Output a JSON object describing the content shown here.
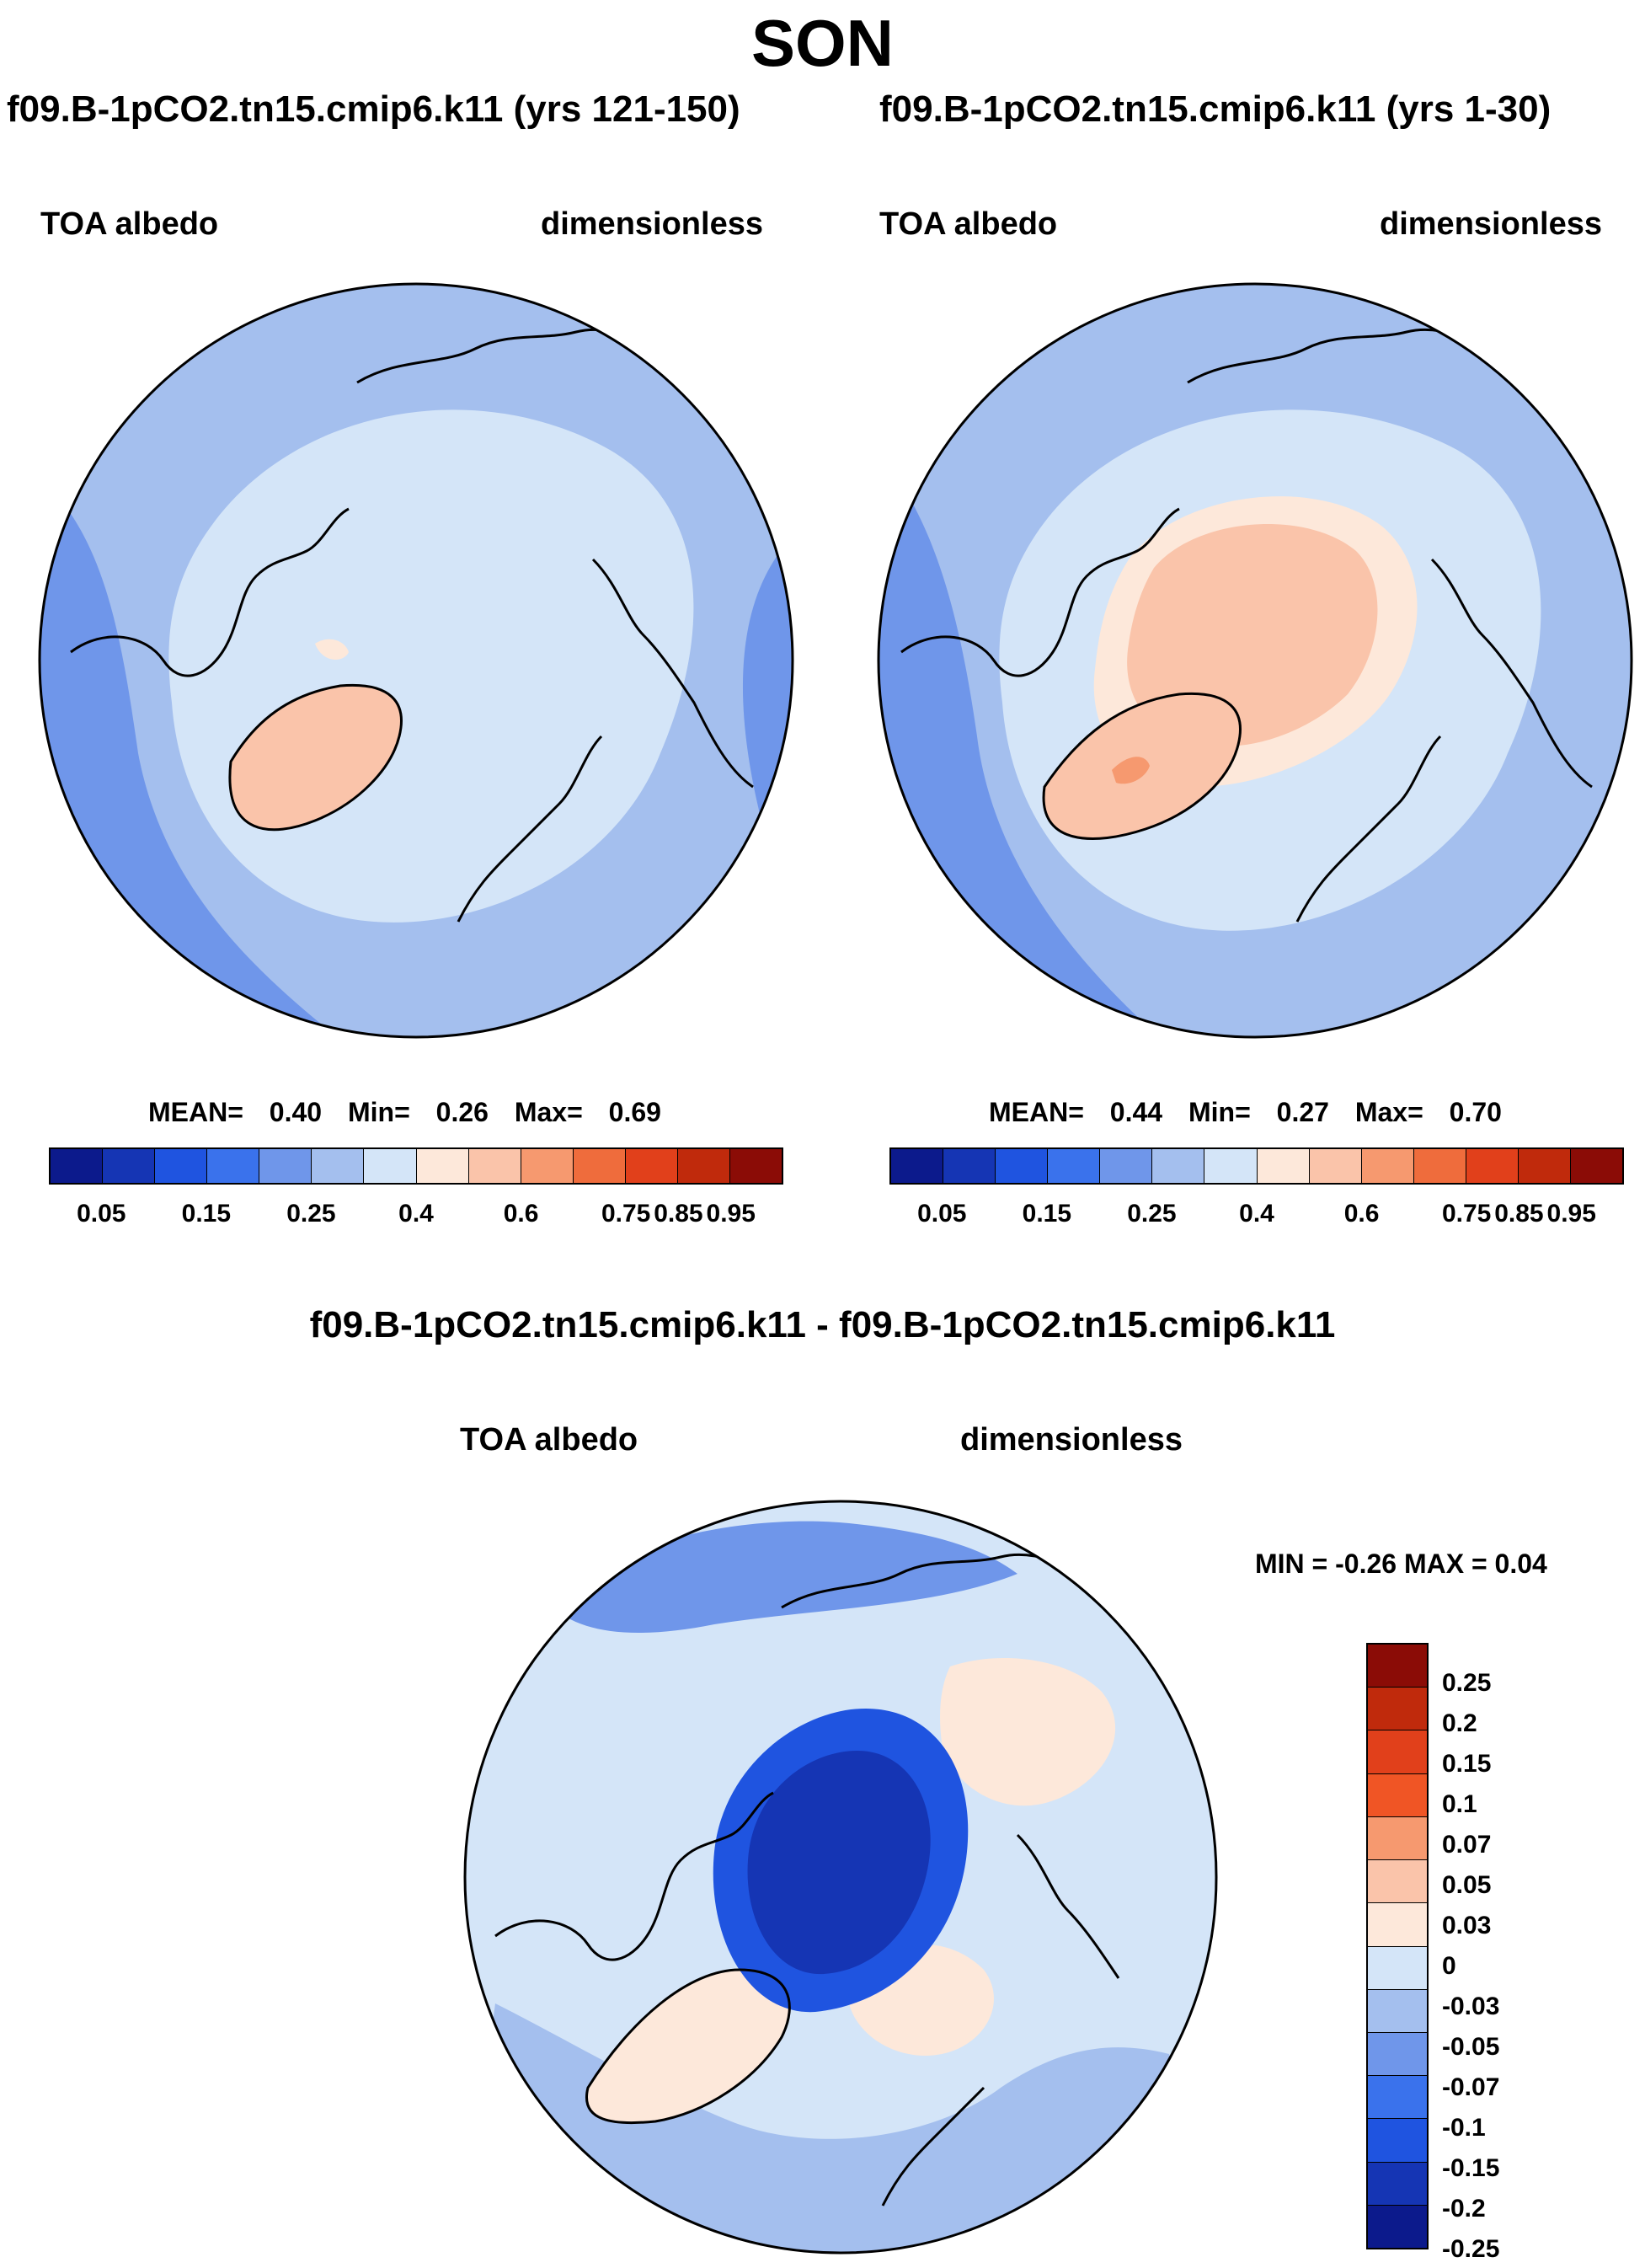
{
  "figure": {
    "season": "SON",
    "left_case_title": "f09.B-1pCO2.tn15.cmip6.k11 (yrs 121-150)",
    "right_case_title": "f09.B-1pCO2.tn15.cmip6.k11 (yrs 1-30)",
    "diff_title": "f09.B-1pCO2.tn15.cmip6.k11 - f09.B-1pCO2.tn15.cmip6.k11"
  },
  "panels": [
    {
      "variable": "TOA albedo",
      "units": "dimensionless",
      "mean_label": "MEAN=",
      "mean": "0.40",
      "min_label": "Min=",
      "min": "0.26",
      "max_label": "Max=",
      "max": "0.69"
    },
    {
      "variable": "TOA albedo",
      "units": "dimensionless",
      "mean_label": "MEAN=",
      "mean": "0.44",
      "min_label": "Min=",
      "min": "0.27",
      "max_label": "Max=",
      "max": "0.70"
    },
    {
      "variable": "TOA albedo",
      "units": "dimensionless",
      "minmax_text": "MIN =  -0.26 MAX =   0.04"
    }
  ],
  "colorbar_abs": {
    "colors": [
      "#0c1a8c",
      "#1535b4",
      "#1f54e0",
      "#3a72ec",
      "#6f96ea",
      "#a4bfee",
      "#d4e5f8",
      "#fde8da",
      "#fac4aa",
      "#f6996f",
      "#ef6c3c",
      "#e1401b",
      "#c02a0c",
      "#8b0c06"
    ],
    "tick_labels": [
      "0.05",
      "0.15",
      "0.25",
      "0.4",
      "0.6",
      "0.75",
      "0.85",
      "0.95"
    ]
  },
  "colorbar_diff": {
    "colors": [
      "#8b0c06",
      "#c02a0c",
      "#e1401b",
      "#f05525",
      "#f6996f",
      "#fac4aa",
      "#fde8da",
      "#d4e5f8",
      "#a4bfee",
      "#6f96ea",
      "#3a72ec",
      "#1f54e0",
      "#1535b4",
      "#0c1a8c"
    ],
    "tick_labels": [
      "0.25",
      "0.2",
      "0.15",
      "0.1",
      "0.07",
      "0.05",
      "0.03",
      "0",
      "-0.03",
      "-0.05",
      "-0.07",
      "-0.1",
      "-0.15",
      "-0.2",
      "-0.25"
    ]
  },
  "map_colors": {
    "ocean_base": "#a4bfee",
    "pale_blue": "#d4e5f8",
    "mid_blue": "#6f96ea",
    "light_orange": "#fde8da",
    "orange": "#fac4aa",
    "deep_orange": "#f6996f",
    "strong_blue": "#1f54e0",
    "dark_blue": "#1535b4",
    "coast": "#000000"
  }
}
